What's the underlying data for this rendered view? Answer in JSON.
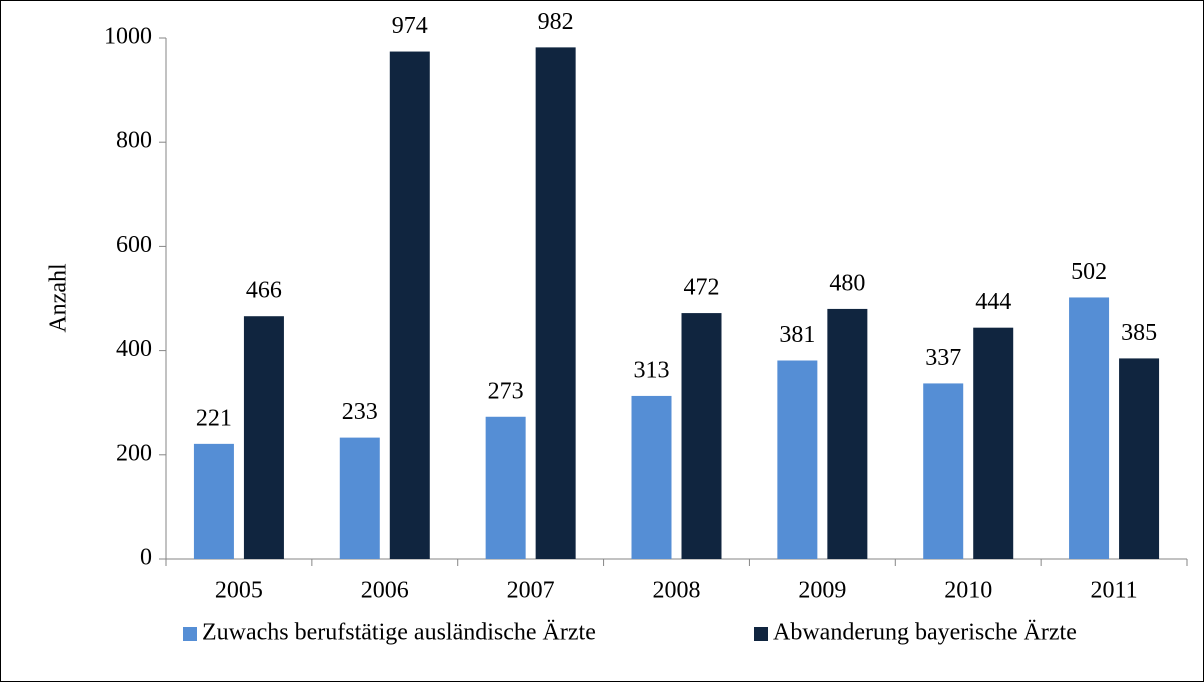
{
  "chart_data": {
    "type": "bar",
    "y_label": "Anzahl",
    "categories": [
      "2005",
      "2006",
      "2007",
      "2008",
      "2009",
      "2010",
      "2011"
    ],
    "series": [
      {
        "name": "Zuwachs berufstätige ausländische Ärzte",
        "color": "#558ed5",
        "values": [
          221,
          233,
          273,
          313,
          381,
          337,
          502
        ]
      },
      {
        "name": "Abwanderung bayerische Ärzte",
        "color": "#10253f",
        "values": [
          466,
          974,
          982,
          472,
          480,
          444,
          385
        ]
      }
    ],
    "ylim": [
      0,
      1000
    ],
    "yticks": [
      0,
      200,
      400,
      600,
      800,
      1000
    ],
    "grid": false,
    "legend": "bottom"
  }
}
